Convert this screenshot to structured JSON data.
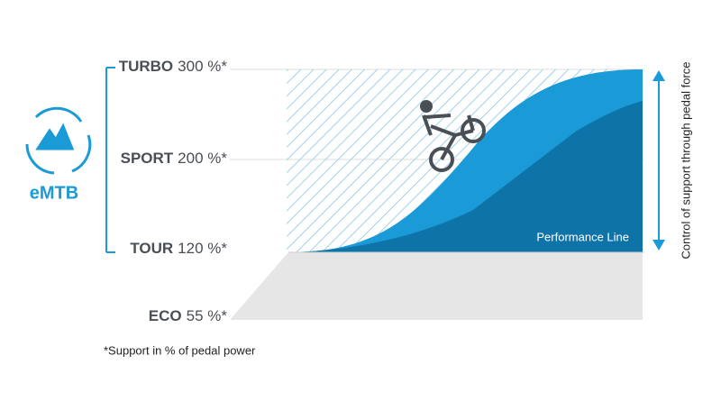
{
  "logo_label": "eMTB",
  "levels": [
    {
      "name": "TURBO",
      "value": "300 %*"
    },
    {
      "name": "SPORT",
      "value": "200 %*"
    },
    {
      "name": "TOUR",
      "value": "120 %*"
    },
    {
      "name": "ECO",
      "value": "55 %*"
    }
  ],
  "curve_label": "Performance Line",
  "axis_label": "Control of support through pedal force",
  "footnote": "*Support in % of pedal power"
}
